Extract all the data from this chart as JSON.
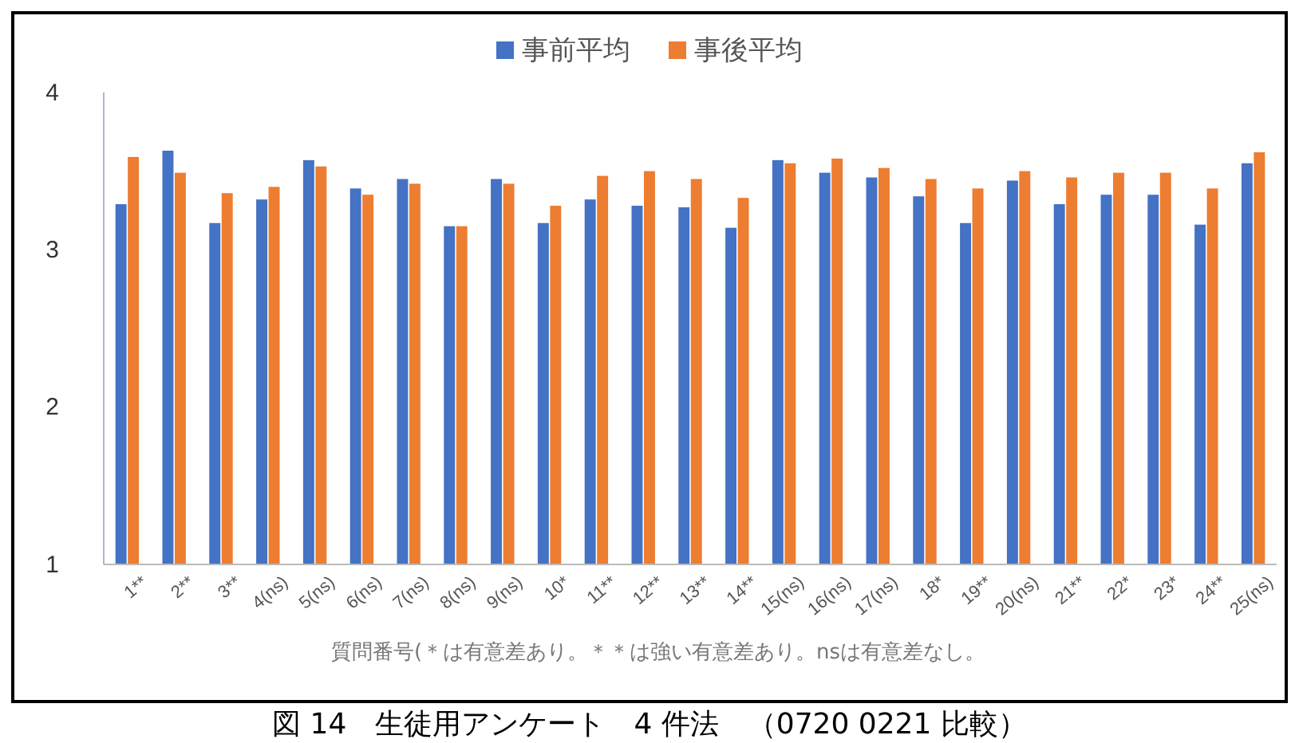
{
  "chart_data": {
    "type": "bar",
    "xlabel": "質問番号(＊は有意差あり。＊＊は強い有意差あり。nsは有意差なし。",
    "categories": [
      "1**",
      "2**",
      "3**",
      "4(ns)",
      "5(ns)",
      "6(ns)",
      "7(ns)",
      "8(ns)",
      "9(ns)",
      "10*",
      "11**",
      "12**",
      "13**",
      "14**",
      "15(ns)",
      "16(ns)",
      "17(ns)",
      "18*",
      "19**",
      "20(ns)",
      "21**",
      "22*",
      "23*",
      "24**",
      "25(ns)"
    ],
    "series": [
      {
        "name": "事前平均",
        "color": "#4472c4",
        "values": [
          3.29,
          3.63,
          3.17,
          3.32,
          3.57,
          3.39,
          3.45,
          3.15,
          3.45,
          3.17,
          3.32,
          3.28,
          3.27,
          3.14,
          3.57,
          3.49,
          3.46,
          3.34,
          3.17,
          3.44,
          3.29,
          3.35,
          3.35,
          3.16,
          3.55
        ]
      },
      {
        "name": "事後平均",
        "color": "#ed7d31",
        "values": [
          3.59,
          3.49,
          3.36,
          3.4,
          3.53,
          3.35,
          3.42,
          3.15,
          3.42,
          3.28,
          3.47,
          3.5,
          3.45,
          3.33,
          3.55,
          3.58,
          3.52,
          3.45,
          3.39,
          3.5,
          3.46,
          3.49,
          3.49,
          3.39,
          3.62
        ]
      }
    ],
    "ylim": [
      1,
      4
    ],
    "yticks": [
      1,
      2,
      3,
      4
    ],
    "grid": false,
    "legend": "top",
    "annotations": [
      "図 14　生徒用アンケート　4 件法　（0720 0221 比較）"
    ]
  }
}
